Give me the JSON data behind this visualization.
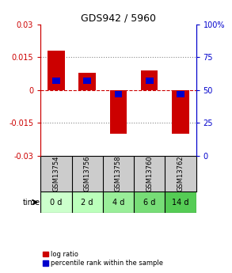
{
  "title": "GDS942 / 5960",
  "samples": [
    "GSM13754",
    "GSM13756",
    "GSM13758",
    "GSM13760",
    "GSM13762"
  ],
  "time_labels": [
    "0 d",
    "2 d",
    "4 d",
    "6 d",
    "14 d"
  ],
  "log_ratios": [
    0.018,
    0.008,
    -0.02,
    0.009,
    -0.02
  ],
  "percentile_ranks": [
    57,
    57,
    47,
    57,
    47
  ],
  "ylim_left": [
    -0.03,
    0.03
  ],
  "ylim_right": [
    0,
    100
  ],
  "yticks_left": [
    -0.03,
    -0.015,
    0,
    0.015,
    0.03
  ],
  "yticks_right": [
    0,
    25,
    50,
    75,
    100
  ],
  "hlines_dotted": [
    -0.015,
    0.015
  ],
  "zero_line_y": 0,
  "bar_color_red": "#cc0000",
  "bar_color_blue": "#0000cc",
  "bar_width": 0.55,
  "blue_bar_height": 0.003,
  "time_row_colors": [
    "#ccffcc",
    "#bbffbb",
    "#99ee99",
    "#77dd77",
    "#55cc55"
  ],
  "sample_row_color": "#cccccc",
  "legend_red": "log ratio",
  "legend_blue": "percentile rank within the sample",
  "time_label": "time",
  "bg_color": "#ffffff",
  "plot_bg_color": "#ffffff",
  "axis_left_color": "#cc0000",
  "axis_right_color": "#0000cc",
  "zero_line_color": "#cc0000",
  "zero_line_style": "--",
  "grid_style": ":",
  "grid_color": "#888888",
  "title_fontsize": 9,
  "tick_fontsize": 7,
  "sample_fontsize": 6,
  "time_fontsize": 7,
  "legend_fontsize": 6
}
